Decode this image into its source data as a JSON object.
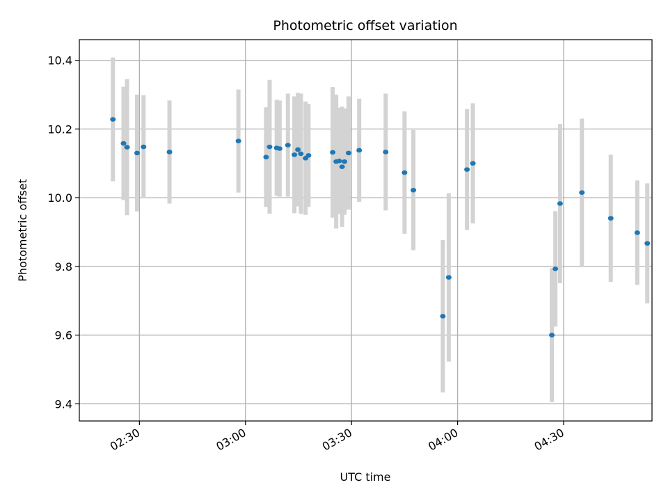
{
  "chart_data": {
    "type": "scatter",
    "title": "Photometric offset variation",
    "xlabel": "UTC time",
    "ylabel": "Photometric offset",
    "x_axis": {
      "kind": "time",
      "range": [
        "02:13",
        "04:55"
      ],
      "ticks": [
        "02:30",
        "03:00",
        "03:30",
        "04:00",
        "04:30"
      ]
    },
    "y_axis": {
      "range": [
        9.35,
        10.46
      ],
      "ticks": [
        "9.4",
        "9.6",
        "9.8",
        "10.0",
        "10.2",
        "10.4"
      ]
    },
    "grid": true,
    "colors": {
      "point": "#1f77b4",
      "errorbar": "#d3d3d3",
      "grid": "#b0b0b0"
    },
    "points": [
      {
        "t": "02:22:30",
        "y": 10.228,
        "err": 0.18
      },
      {
        "t": "02:25:30",
        "y": 10.158,
        "err": 0.165
      },
      {
        "t": "02:26:30",
        "y": 10.147,
        "err": 0.198
      },
      {
        "t": "02:29:20",
        "y": 10.13,
        "err": 0.17
      },
      {
        "t": "02:31:10",
        "y": 10.148,
        "err": 0.15
      },
      {
        "t": "02:38:30",
        "y": 10.133,
        "err": 0.15
      },
      {
        "t": "02:58:00",
        "y": 10.165,
        "err": 0.15
      },
      {
        "t": "03:05:50",
        "y": 10.118,
        "err": 0.145
      },
      {
        "t": "03:06:50",
        "y": 10.148,
        "err": 0.195
      },
      {
        "t": "03:08:50",
        "y": 10.145,
        "err": 0.14
      },
      {
        "t": "03:09:40",
        "y": 10.143,
        "err": 0.14
      },
      {
        "t": "03:12:00",
        "y": 10.153,
        "err": 0.15
      },
      {
        "t": "03:13:50",
        "y": 10.125,
        "err": 0.17
      },
      {
        "t": "03:14:50",
        "y": 10.14,
        "err": 0.165
      },
      {
        "t": "03:15:40",
        "y": 10.128,
        "err": 0.175
      },
      {
        "t": "03:17:00",
        "y": 10.115,
        "err": 0.165
      },
      {
        "t": "03:17:50",
        "y": 10.123,
        "err": 0.15
      },
      {
        "t": "03:24:40",
        "y": 10.132,
        "err": 0.19
      },
      {
        "t": "03:25:40",
        "y": 10.105,
        "err": 0.195
      },
      {
        "t": "03:26:30",
        "y": 10.107,
        "err": 0.155
      },
      {
        "t": "03:27:20",
        "y": 10.09,
        "err": 0.175
      },
      {
        "t": "03:28:00",
        "y": 10.105,
        "err": 0.155
      },
      {
        "t": "03:29:10",
        "y": 10.13,
        "err": 0.165
      },
      {
        "t": "03:32:10",
        "y": 10.138,
        "err": 0.15
      },
      {
        "t": "03:39:40",
        "y": 10.133,
        "err": 0.17
      },
      {
        "t": "03:45:00",
        "y": 10.073,
        "err": 0.178
      },
      {
        "t": "03:47:30",
        "y": 10.022,
        "err": 0.175
      },
      {
        "t": "03:55:50",
        "y": 9.655,
        "err": 0.222
      },
      {
        "t": "03:57:30",
        "y": 9.768,
        "err": 0.245
      },
      {
        "t": "04:02:40",
        "y": 10.082,
        "err": 0.176
      },
      {
        "t": "04:04:20",
        "y": 10.1,
        "err": 0.175
      },
      {
        "t": "04:26:40",
        "y": 9.6,
        "err": 0.195
      },
      {
        "t": "04:27:40",
        "y": 9.793,
        "err": 0.168
      },
      {
        "t": "04:29:00",
        "y": 9.983,
        "err": 0.232
      },
      {
        "t": "04:35:10",
        "y": 10.015,
        "err": 0.215
      },
      {
        "t": "04:43:20",
        "y": 9.94,
        "err": 0.185
      },
      {
        "t": "04:50:50",
        "y": 9.898,
        "err": 0.152
      },
      {
        "t": "04:53:40",
        "y": 9.867,
        "err": 0.175
      }
    ]
  }
}
